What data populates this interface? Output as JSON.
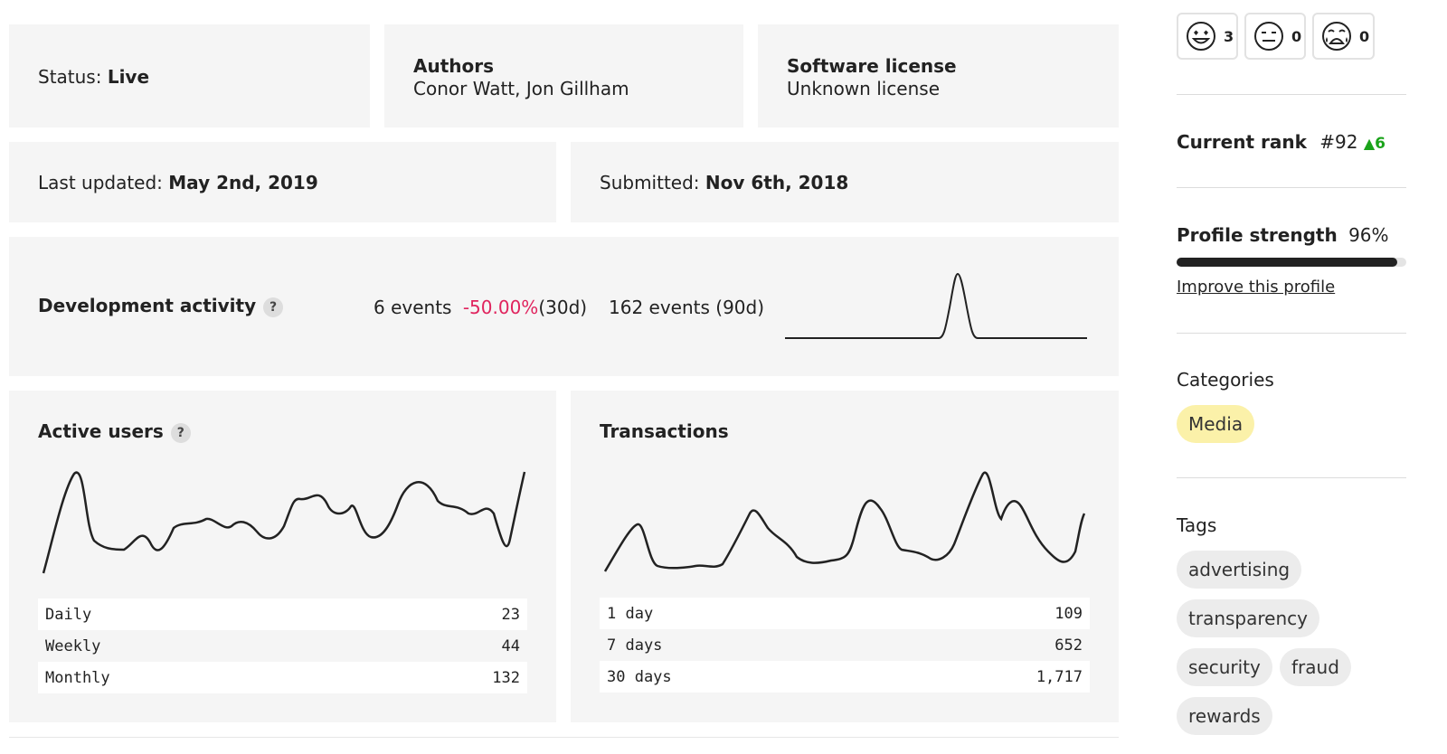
{
  "status": {
    "label": "Status:",
    "value": "Live"
  },
  "authors": {
    "label": "Authors",
    "value": "Conor Watt, Jon Gillham"
  },
  "license": {
    "label": "Software license",
    "value": "Unknown license"
  },
  "last_updated": {
    "label": "Last updated:",
    "value": "May 2nd, 2019"
  },
  "submitted": {
    "label": "Submitted:",
    "value": "Nov 6th, 2018"
  },
  "dev_activity": {
    "label": "Development activity",
    "help": "?",
    "events_30d": "6 events",
    "change": "-50.00%",
    "period_30d": "(30d)",
    "events_90d": "162 events (90d)",
    "change_color": "#e0245e"
  },
  "active_users": {
    "label": "Active users",
    "help": "?",
    "rows": [
      {
        "label": "Daily",
        "value": "23"
      },
      {
        "label": "Weekly",
        "value": "44"
      },
      {
        "label": "Monthly",
        "value": "132"
      }
    ]
  },
  "transactions": {
    "label": "Transactions",
    "rows": [
      {
        "label": "1 day",
        "value": "109"
      },
      {
        "label": "7 days",
        "value": "652"
      },
      {
        "label": "30 days",
        "value": "1,717"
      }
    ]
  },
  "reactions": [
    {
      "icon": "heart-eyes-face-icon",
      "count": "3"
    },
    {
      "icon": "neutral-face-icon",
      "count": "0"
    },
    {
      "icon": "crying-face-icon",
      "count": "0"
    }
  ],
  "rank": {
    "label": "Current rank",
    "value": "#92",
    "change": "6",
    "change_color": "#1aa31a"
  },
  "profile": {
    "label": "Profile strength",
    "value": "96%",
    "fill": 0.96,
    "link": "Improve this profile"
  },
  "categories": {
    "label": "Categories",
    "items": [
      "Media"
    ]
  },
  "tags": {
    "label": "Tags",
    "items": [
      "advertising",
      "transparency",
      "security",
      "fraud",
      "rewards"
    ]
  }
}
